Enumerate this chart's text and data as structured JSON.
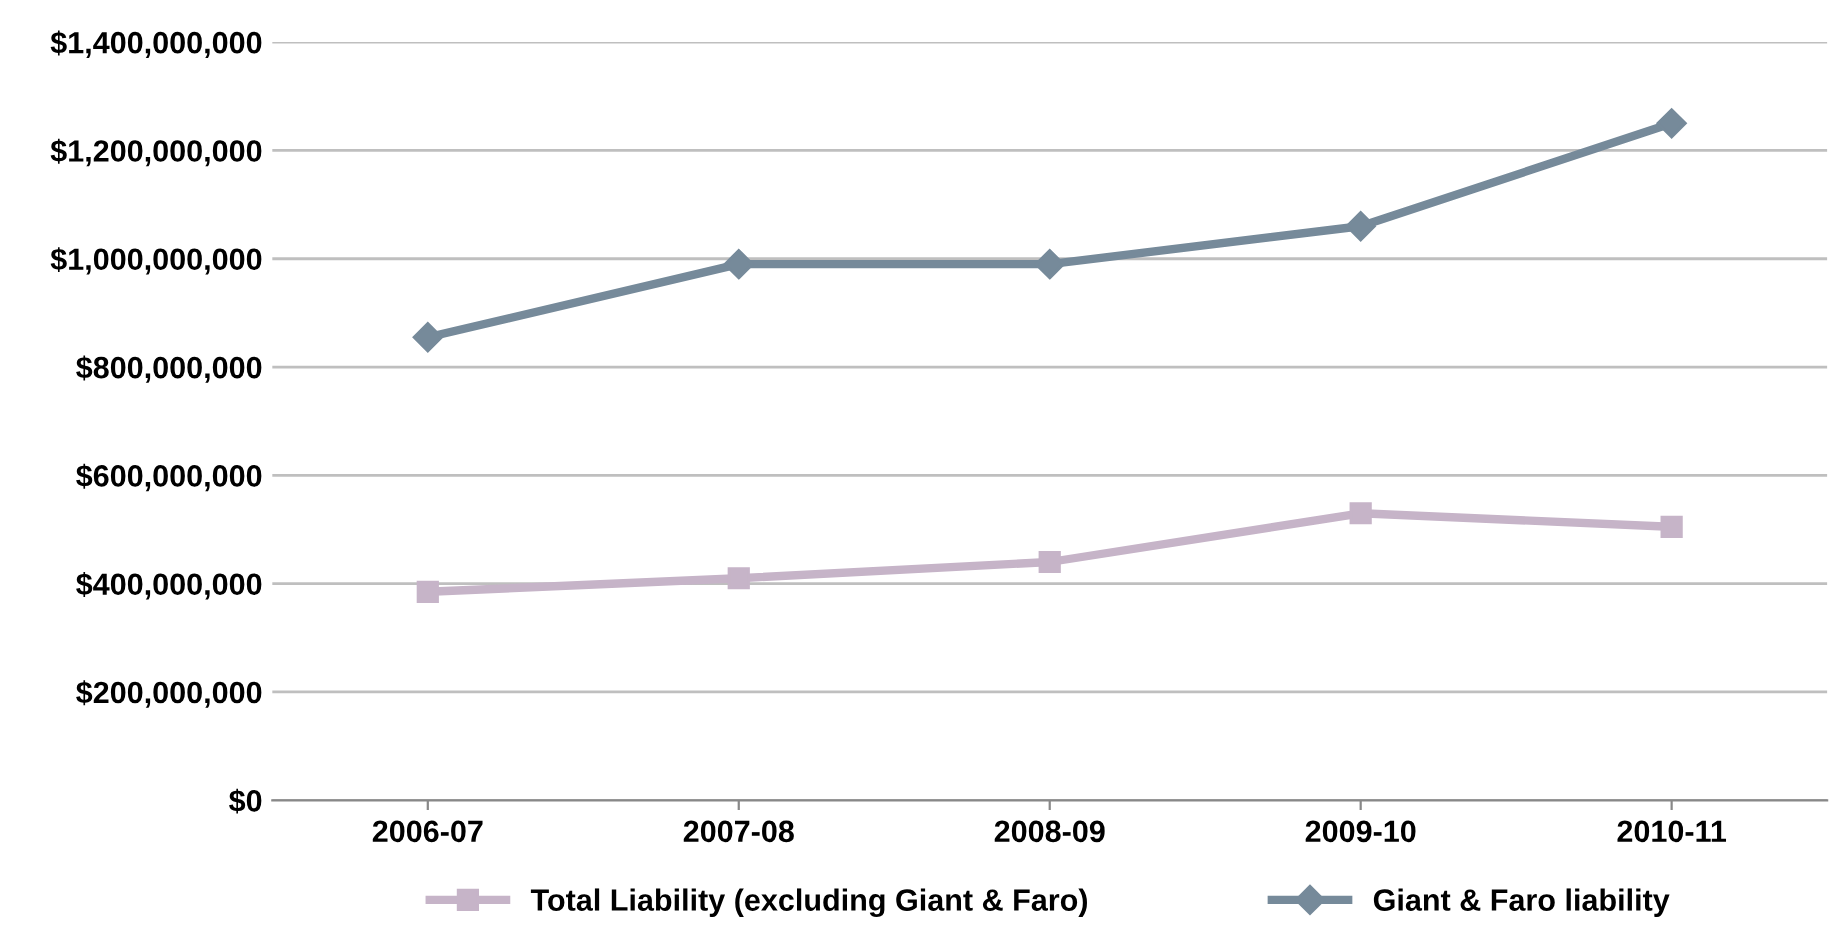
{
  "chart_data": {
    "type": "line",
    "categories": [
      "2006-07",
      "2007-08",
      "2008-09",
      "2009-10",
      "2010-11"
    ],
    "series": [
      {
        "name": "Total Liability (excluding Giant & Faro)",
        "color": "#c6b4c8",
        "marker": "square",
        "values": [
          385000000,
          410000000,
          440000000,
          530000000,
          505000000
        ]
      },
      {
        "name": "Giant & Faro liability",
        "color": "#768a9a",
        "marker": "diamond",
        "values": [
          855000000,
          990000000,
          990000000,
          1060000000,
          1250000000
        ]
      }
    ],
    "ylim": [
      0,
      1400000000
    ],
    "yticks": [
      {
        "value": 0,
        "label": "$0"
      },
      {
        "value": 200000000,
        "label": "$200,000,000"
      },
      {
        "value": 400000000,
        "label": "$400,000,000"
      },
      {
        "value": 600000000,
        "label": "$600,000,000"
      },
      {
        "value": 800000000,
        "label": "$800,000,000"
      },
      {
        "value": 1000000000,
        "label": "$1,000,000,000"
      },
      {
        "value": 1200000000,
        "label": "$1,200,000,000"
      },
      {
        "value": 1400000000,
        "label": "$1,400,000,000"
      }
    ],
    "grid": "y",
    "legend": "bottom",
    "line_style": "solid"
  }
}
